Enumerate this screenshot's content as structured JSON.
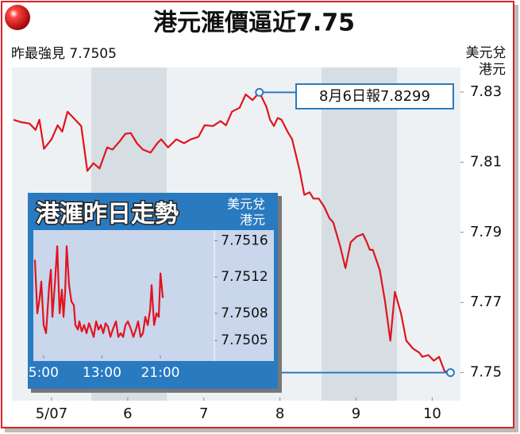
{
  "chart_data": [
    {
      "type": "line",
      "title": "港元滙價逼近7.75",
      "subtitle": "昨最強見 7.7505",
      "ylabel": [
        "美元兌",
        "港元"
      ],
      "annotation": "8月6日報7.8299",
      "color": "#e0141e",
      "x": [
        4.5,
        4.6,
        4.71,
        4.79,
        4.84,
        4.9,
        5.0,
        5.08,
        5.14,
        5.21,
        5.31,
        5.39,
        5.47,
        5.55,
        5.63,
        5.73,
        5.8,
        5.89,
        5.97,
        6.04,
        6.12,
        6.2,
        6.3,
        6.39,
        6.44,
        6.53,
        6.64,
        6.74,
        6.83,
        6.93,
        7.01,
        7.12,
        7.22,
        7.29,
        7.37,
        7.47,
        7.55,
        7.64,
        7.73,
        7.82,
        7.87,
        7.92,
        7.97,
        8.02,
        8.1,
        8.16,
        8.21,
        8.26,
        8.32,
        8.39,
        8.44,
        8.51,
        8.58,
        8.65,
        8.7,
        8.79,
        8.86,
        8.93,
        9.01,
        9.09,
        9.14,
        9.18,
        9.22,
        9.31,
        9.38,
        9.45,
        9.51,
        9.59,
        9.66,
        9.75,
        9.83,
        9.87,
        9.95,
        10.02,
        10.09,
        10.16,
        10.24
      ],
      "values": [
        7.8221,
        7.8214,
        7.821,
        7.8192,
        7.8221,
        7.8138,
        7.8165,
        7.8205,
        7.8187,
        7.8244,
        7.8221,
        7.8203,
        7.8075,
        7.8097,
        7.8082,
        7.8142,
        7.8136,
        7.8158,
        7.8181,
        7.8183,
        7.8154,
        7.8136,
        7.8127,
        7.8154,
        7.8165,
        7.8142,
        7.8165,
        7.8154,
        7.8165,
        7.8172,
        7.8205,
        7.8203,
        7.8217,
        7.8205,
        7.8244,
        7.8255,
        7.8293,
        7.8277,
        7.8299,
        7.8259,
        7.8221,
        7.8203,
        7.8226,
        7.8221,
        7.8187,
        7.8165,
        7.812,
        7.8075,
        7.8007,
        7.8014,
        7.7996,
        7.7996,
        7.7973,
        7.794,
        7.7928,
        7.7861,
        7.7798,
        7.7872,
        7.7888,
        7.7895,
        7.7872,
        7.785,
        7.785,
        7.7793,
        7.7703,
        7.7591,
        7.773,
        7.7669,
        7.7591,
        7.7568,
        7.7557,
        7.7545,
        7.755,
        7.7534,
        7.7545,
        7.7505,
        7.75
      ],
      "xlim": [
        4.5,
        10.35
      ],
      "xticks": [
        {
          "value": 5,
          "label": "5/07"
        },
        6,
        7,
        8,
        9,
        10
      ],
      "ylim": [
        7.742,
        7.837
      ],
      "yticks": [
        7.75,
        7.77,
        7.79,
        7.81,
        7.83
      ]
    },
    {
      "type": "line",
      "title": "港滙昨日走勢",
      "ylabel": [
        "美元兌",
        "港元"
      ],
      "color": "#e0141e",
      "x": [
        3.82,
        4.14,
        4.47,
        4.69,
        5.01,
        5.34,
        5.78,
        6.0,
        6.21,
        6.54,
        6.87,
        7.2,
        7.52,
        7.73,
        7.95,
        8.17,
        8.5,
        8.82,
        9.15,
        9.37,
        9.7,
        9.91,
        10.24,
        10.56,
        10.89,
        11.22,
        11.54,
        11.87,
        12.2,
        12.52,
        12.85,
        13.18,
        13.5,
        13.83,
        14.16,
        14.48,
        14.92,
        15.24,
        15.57,
        15.9,
        16.22,
        16.55,
        16.99,
        17.31,
        17.64,
        17.96,
        18.29,
        18.62,
        18.94,
        19.27,
        19.6,
        19.81,
        20.14,
        20.47,
        20.79,
        21.01,
        21.34
      ],
      "values": [
        7.75139,
        7.7508,
        7.75097,
        7.75115,
        7.75067,
        7.75058,
        7.75111,
        7.75128,
        7.75076,
        7.75111,
        7.75154,
        7.7508,
        7.75106,
        7.75076,
        7.75102,
        7.75154,
        7.75111,
        7.75093,
        7.75089,
        7.75067,
        7.75062,
        7.75071,
        7.7506,
        7.75067,
        7.75058,
        7.75069,
        7.75062,
        7.75054,
        7.75071,
        7.75062,
        7.75067,
        7.75058,
        7.75069,
        7.75065,
        7.75054,
        7.75062,
        7.75071,
        7.75054,
        7.75058,
        7.75054,
        7.75067,
        7.75071,
        7.75062,
        7.75054,
        7.75062,
        7.75071,
        7.75054,
        7.75058,
        7.75076,
        7.75067,
        7.75084,
        7.75111,
        7.75067,
        7.7508,
        7.75076,
        7.75124,
        7.75097
      ],
      "xlim": [
        3.6,
        28.4
      ],
      "xticks": [
        {
          "value": 5,
          "label": "5:00"
        },
        {
          "value": 13,
          "label": "13:00"
        },
        {
          "value": 21,
          "label": "21:00"
        }
      ],
      "ylim": [
        7.7503,
        7.7517
      ],
      "yticks": [
        7.7505,
        7.7508,
        7.7512,
        7.7516
      ]
    }
  ]
}
